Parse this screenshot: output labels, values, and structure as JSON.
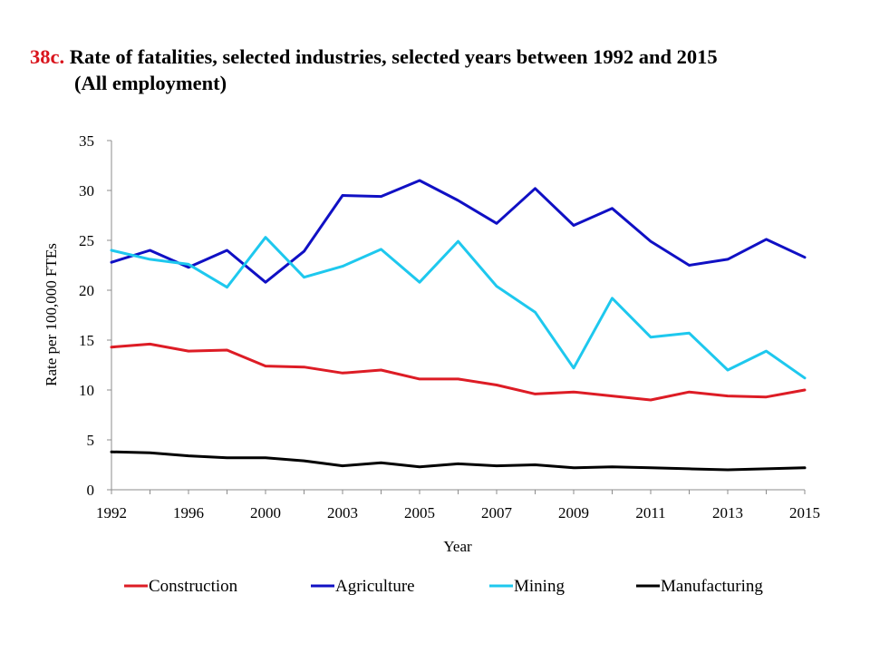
{
  "title": {
    "number": "38c.",
    "line1": "Rate of fatalities, selected industries, selected years between 1992 and 2015",
    "line2": "(All employment)"
  },
  "chart_data": {
    "type": "line",
    "x": [
      1992,
      1994,
      1996,
      1998,
      2000,
      2002,
      2003,
      2004,
      2005,
      2006,
      2007,
      2008,
      2009,
      2010,
      2011,
      2012,
      2013,
      2014,
      2015
    ],
    "x_tick_labels": [
      "1992",
      "1996",
      "2000",
      "2003",
      "2005",
      "2007",
      "2009",
      "2011",
      "2013",
      "2015"
    ],
    "y_ticks": [
      0,
      5,
      10,
      15,
      20,
      25,
      30,
      35
    ],
    "ylim": [
      0,
      35
    ],
    "xlabel": "Year",
    "ylabel": "Rate per 100,000 FTEs",
    "legend_position": "bottom",
    "grid": false,
    "series": [
      {
        "name": "Construction",
        "color": "#dd1c25",
        "values": [
          14.3,
          14.6,
          13.9,
          14.0,
          12.4,
          12.3,
          11.7,
          12.0,
          11.1,
          11.1,
          10.5,
          9.6,
          9.8,
          9.4,
          9.0,
          9.8,
          9.4,
          9.3,
          10.0
        ]
      },
      {
        "name": "Agriculture",
        "color": "#1010c4",
        "values": [
          22.8,
          24.0,
          22.3,
          24.0,
          20.8,
          23.9,
          29.5,
          29.4,
          31.0,
          29.0,
          26.7,
          30.2,
          26.5,
          28.2,
          24.9,
          22.5,
          23.1,
          25.1,
          23.3
        ]
      },
      {
        "name": "Mining",
        "color": "#1ec8ee",
        "values": [
          24.0,
          23.1,
          22.6,
          20.3,
          25.3,
          21.3,
          22.4,
          24.1,
          20.8,
          24.9,
          20.4,
          17.8,
          12.2,
          19.2,
          15.3,
          15.7,
          12.0,
          13.9,
          11.2
        ]
      },
      {
        "name": "Manufacturing",
        "color": "#000000",
        "values": [
          3.8,
          3.7,
          3.4,
          3.2,
          3.2,
          2.9,
          2.4,
          2.7,
          2.3,
          2.6,
          2.4,
          2.5,
          2.2,
          2.3,
          2.2,
          2.1,
          2.0,
          2.1,
          2.2
        ]
      }
    ]
  }
}
